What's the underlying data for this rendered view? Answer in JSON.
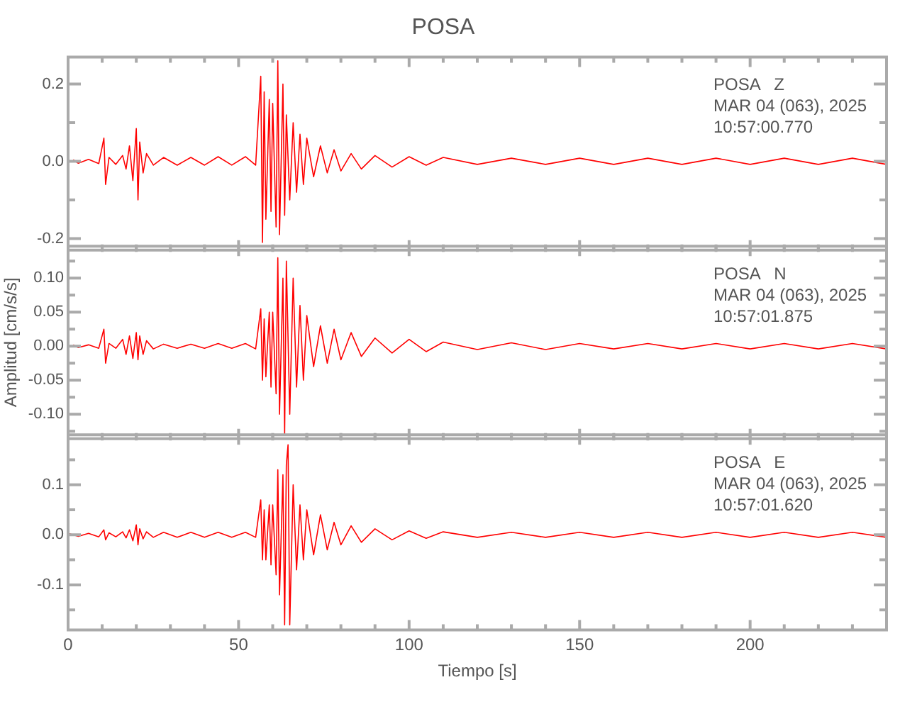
{
  "chart_data": [
    {
      "type": "line",
      "title": "POSA",
      "marker": "none",
      "tick_labels": "y",
      "annotations": [
        "POSA   Z",
        "MAR 04 (063), 2025",
        "10:57:00.770"
      ],
      "xlim": [
        0,
        240
      ],
      "xticks": [
        0,
        {
          "value": 10,
          "label": null
        },
        {
          "value": 20,
          "label": null
        },
        {
          "value": 30,
          "label": null
        },
        {
          "value": 40,
          "label": null
        },
        50,
        {
          "value": 60,
          "label": null
        },
        {
          "value": 70,
          "label": null
        },
        {
          "value": 80,
          "label": null
        },
        {
          "value": 90,
          "label": null
        },
        100,
        {
          "value": 110,
          "label": null
        },
        {
          "value": 120,
          "label": null
        },
        {
          "value": 130,
          "label": null
        },
        {
          "value": 140,
          "label": null
        },
        150,
        {
          "value": 160,
          "label": null
        },
        {
          "value": 170,
          "label": null
        },
        {
          "value": 180,
          "label": null
        },
        {
          "value": 190,
          "label": null
        },
        200,
        {
          "value": 210,
          "label": null
        },
        {
          "value": 220,
          "label": null
        },
        {
          "value": 230,
          "label": null
        }
      ],
      "ylim": [
        -0.23,
        0.27
      ],
      "yticks": [
        {
          "value": -0.2,
          "label": "-0.2"
        },
        {
          "value": -0.1,
          "label": null
        },
        {
          "value": 0,
          "label": "0.0"
        },
        {
          "value": 0.1,
          "label": null
        },
        {
          "value": 0.2,
          "label": "0.2"
        }
      ],
      "x": [
        1.5,
        3,
        6,
        9,
        10.5,
        11,
        12,
        14,
        16,
        17,
        18,
        19,
        20,
        20.5,
        21,
        22,
        23,
        25,
        28,
        32,
        36,
        40,
        44,
        48,
        52,
        55,
        56.5,
        57,
        57.5,
        58,
        59,
        59.5,
        60,
        61,
        61.5,
        62,
        63,
        63.5,
        64,
        65,
        66,
        67,
        68,
        69,
        70,
        72,
        74,
        76,
        78,
        80,
        83,
        86,
        90,
        95,
        100,
        105,
        110,
        120,
        130,
        140,
        150,
        160,
        170,
        180,
        190,
        200,
        210,
        220,
        230,
        240
      ],
      "series": [
        {
          "color": "#ff0000",
          "values": [
            0.004,
            -0.005,
            0.005,
            -0.006,
            0.06,
            -0.06,
            0.01,
            -0.008,
            0.015,
            -0.02,
            0.04,
            -0.05,
            0.085,
            -0.1,
            0.05,
            -0.03,
            0.02,
            -0.01,
            0.01,
            -0.01,
            0.01,
            -0.01,
            0.012,
            -0.01,
            0.012,
            -0.01,
            0.22,
            -0.21,
            0.18,
            -0.15,
            0.16,
            -0.13,
            0.15,
            -0.17,
            0.26,
            -0.19,
            0.2,
            -0.14,
            0.12,
            -0.1,
            0.1,
            -0.08,
            0.07,
            -0.06,
            0.06,
            -0.04,
            0.04,
            -0.03,
            0.03,
            -0.025,
            0.02,
            -0.02,
            0.015,
            -0.015,
            0.012,
            -0.01,
            0.01,
            -0.008,
            0.008,
            -0.008,
            0.008,
            -0.008,
            0.008,
            -0.008,
            0.008,
            -0.008,
            0.008,
            -0.008,
            0.008,
            -0.008
          ]
        }
      ]
    },
    {
      "type": "line",
      "ylabel": "Amplitud [cm/s/s]",
      "marker": "none",
      "tick_labels": "y",
      "annotations": [
        "POSA   N",
        "MAR 04 (063), 2025",
        "10:57:01.875"
      ],
      "xlim": [
        0,
        240
      ],
      "xticks": [
        0,
        {
          "value": 10,
          "label": null
        },
        {
          "value": 20,
          "label": null
        },
        {
          "value": 30,
          "label": null
        },
        {
          "value": 40,
          "label": null
        },
        50,
        {
          "value": 60,
          "label": null
        },
        {
          "value": 70,
          "label": null
        },
        {
          "value": 80,
          "label": null
        },
        {
          "value": 90,
          "label": null
        },
        100,
        {
          "value": 110,
          "label": null
        },
        {
          "value": 120,
          "label": null
        },
        {
          "value": 130,
          "label": null
        },
        {
          "value": 140,
          "label": null
        },
        150,
        {
          "value": 160,
          "label": null
        },
        {
          "value": 170,
          "label": null
        },
        {
          "value": 180,
          "label": null
        },
        {
          "value": 190,
          "label": null
        },
        200,
        {
          "value": 210,
          "label": null
        },
        {
          "value": 220,
          "label": null
        },
        {
          "value": 230,
          "label": null
        }
      ],
      "ylim": [
        -0.136,
        0.147
      ],
      "yticks": [
        {
          "value": -0.125,
          "label": null
        },
        {
          "value": -0.1,
          "label": "-0.10"
        },
        {
          "value": -0.075,
          "label": null
        },
        {
          "value": -0.05,
          "label": "-0.05"
        },
        {
          "value": -0.025,
          "label": null
        },
        {
          "value": 0,
          "label": "0.00"
        },
        {
          "value": 0.025,
          "label": null
        },
        {
          "value": 0.05,
          "label": "0.05"
        },
        {
          "value": 0.075,
          "label": null
        },
        {
          "value": 0.1,
          "label": "0.10"
        },
        {
          "value": 0.125,
          "label": null
        }
      ],
      "x": [
        1.5,
        3,
        6,
        9,
        10.5,
        11,
        12,
        14,
        16,
        17,
        18,
        19,
        20,
        20.5,
        21,
        22,
        23,
        25,
        28,
        32,
        36,
        40,
        44,
        48,
        52,
        55,
        56.5,
        57,
        57.5,
        58,
        59,
        59.5,
        60,
        61,
        61.5,
        62,
        63,
        63.5,
        64,
        65,
        66,
        67,
        68,
        69,
        70,
        72,
        74,
        76,
        78,
        80,
        83,
        86,
        90,
        95,
        100,
        105,
        110,
        120,
        130,
        140,
        150,
        160,
        170,
        180,
        190,
        200,
        210,
        220,
        230,
        240
      ],
      "series": [
        {
          "color": "#ff0000",
          "values": [
            0.002,
            -0.002,
            0.002,
            -0.003,
            0.025,
            -0.025,
            0.004,
            -0.003,
            0.01,
            -0.012,
            0.015,
            -0.018,
            0.02,
            -0.02,
            0.015,
            -0.012,
            0.008,
            -0.004,
            0.003,
            -0.003,
            0.003,
            -0.003,
            0.004,
            -0.003,
            0.004,
            -0.004,
            0.055,
            -0.05,
            0.04,
            -0.045,
            0.05,
            -0.06,
            0.05,
            -0.07,
            0.13,
            -0.1,
            0.1,
            -0.13,
            0.125,
            -0.1,
            0.1,
            -0.06,
            0.06,
            -0.05,
            0.045,
            -0.03,
            0.03,
            -0.025,
            0.025,
            -0.02,
            0.02,
            -0.015,
            0.012,
            -0.01,
            0.01,
            -0.008,
            0.006,
            -0.005,
            0.005,
            -0.005,
            0.004,
            -0.004,
            0.004,
            -0.004,
            0.004,
            -0.004,
            0.004,
            -0.004,
            0.004,
            -0.004
          ]
        }
      ]
    },
    {
      "type": "line",
      "xlabel": "Tiempo [s]",
      "marker": "none",
      "annotations": [
        "POSA   E",
        "MAR 04 (063), 2025",
        "10:57:01.620"
      ],
      "xlim": [
        0,
        240
      ],
      "xticks": [
        0,
        {
          "value": 10,
          "label": null
        },
        {
          "value": 20,
          "label": null
        },
        {
          "value": 30,
          "label": null
        },
        {
          "value": 40,
          "label": null
        },
        50,
        {
          "value": 60,
          "label": null
        },
        {
          "value": 70,
          "label": null
        },
        {
          "value": 80,
          "label": null
        },
        {
          "value": 90,
          "label": null
        },
        100,
        {
          "value": 110,
          "label": null
        },
        {
          "value": 120,
          "label": null
        },
        {
          "value": 130,
          "label": null
        },
        {
          "value": 140,
          "label": null
        },
        150,
        {
          "value": 160,
          "label": null
        },
        {
          "value": 170,
          "label": null
        },
        {
          "value": 180,
          "label": null
        },
        {
          "value": 190,
          "label": null
        },
        200,
        {
          "value": 210,
          "label": null
        },
        {
          "value": 220,
          "label": null
        },
        {
          "value": 230,
          "label": null
        }
      ],
      "ylim": [
        -0.19,
        0.2
      ],
      "yticks": [
        {
          "value": -0.15,
          "label": null
        },
        {
          "value": -0.1,
          "label": "-0.1"
        },
        {
          "value": -0.05,
          "label": null
        },
        {
          "value": 0,
          "label": "0.0"
        },
        {
          "value": 0.05,
          "label": null
        },
        {
          "value": 0.1,
          "label": "0.1"
        },
        {
          "value": 0.15,
          "label": null
        }
      ],
      "x": [
        0,
        3,
        6,
        9,
        10.5,
        11,
        12,
        14,
        16,
        17,
        18,
        19,
        20,
        20.5,
        21,
        22,
        23,
        25,
        28,
        32,
        36,
        40,
        44,
        48,
        52,
        55,
        56.5,
        57,
        57.5,
        58,
        59,
        59.5,
        60,
        61,
        61.5,
        62,
        63,
        63.5,
        64,
        64.5,
        65,
        66,
        67,
        68,
        69,
        70,
        72,
        74,
        76,
        78,
        80,
        83,
        86,
        90,
        95,
        100,
        105,
        110,
        120,
        130,
        140,
        150,
        160,
        170,
        180,
        190,
        200,
        210,
        220,
        230,
        240
      ],
      "series": [
        {
          "color": "#ff0000",
          "values": [
            0.003,
            -0.003,
            0.003,
            -0.004,
            0.01,
            -0.01,
            0.004,
            -0.004,
            0.006,
            -0.006,
            0.01,
            -0.012,
            0.02,
            -0.02,
            0.012,
            -0.008,
            0.006,
            -0.005,
            0.005,
            -0.005,
            0.005,
            -0.005,
            0.005,
            -0.005,
            0.005,
            -0.005,
            0.07,
            -0.05,
            0.05,
            -0.05,
            0.06,
            -0.06,
            0.06,
            -0.08,
            0.13,
            -0.12,
            0.12,
            -0.18,
            0.14,
            0.18,
            -0.18,
            0.1,
            -0.07,
            0.06,
            -0.05,
            0.05,
            -0.04,
            0.04,
            -0.03,
            0.025,
            -0.02,
            0.018,
            -0.015,
            0.012,
            -0.01,
            0.008,
            -0.007,
            0.006,
            -0.005,
            0.005,
            -0.005,
            0.005,
            -0.005,
            0.005,
            -0.005,
            0.005,
            -0.005,
            0.005,
            -0.005,
            0.005,
            -0.005
          ]
        }
      ]
    }
  ]
}
